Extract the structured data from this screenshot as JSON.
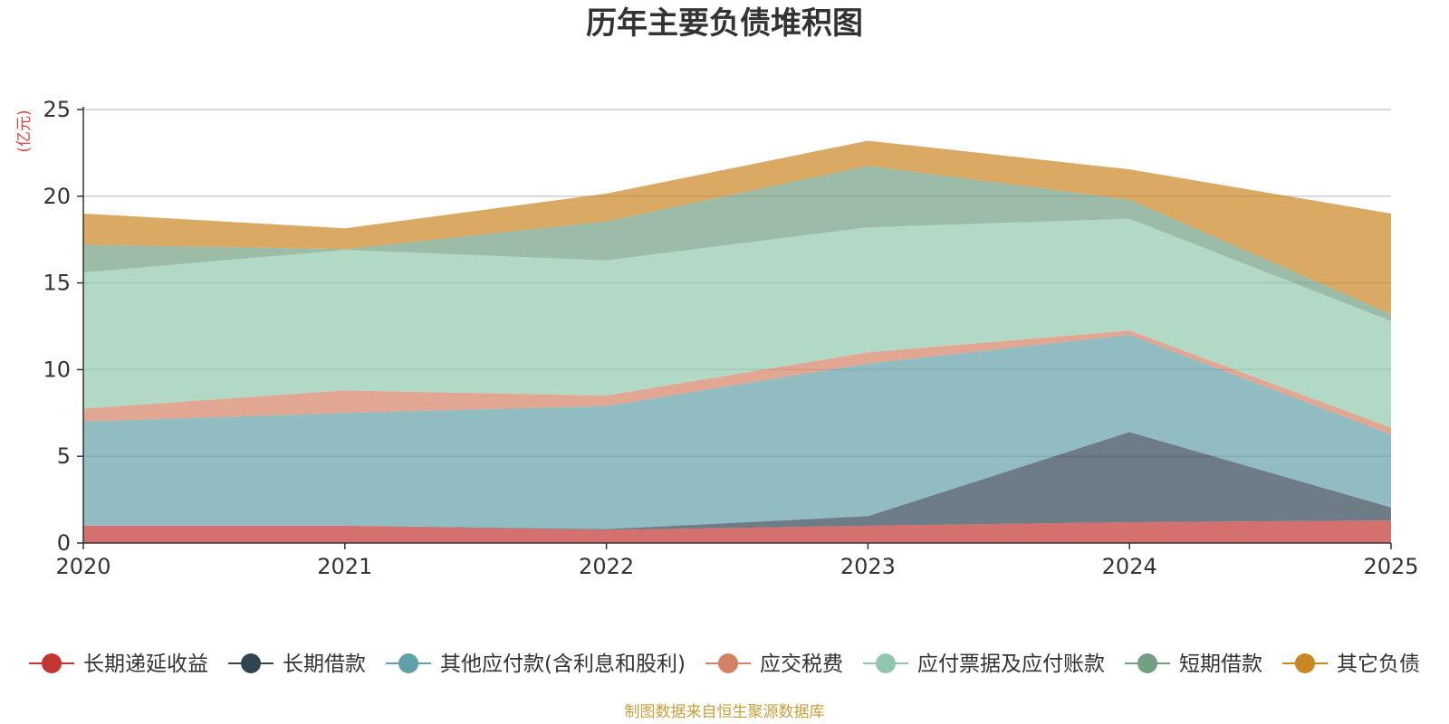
{
  "chart_data": {
    "type": "area",
    "stacked": true,
    "title": "历年主要负债堆积图",
    "ylabel": "(亿元)",
    "x": [
      "2020",
      "2021",
      "2022",
      "2023",
      "2024",
      "2025"
    ],
    "ylim": [
      0,
      25
    ],
    "yticks": [
      0,
      5,
      10,
      15,
      20,
      25
    ],
    "grid": true,
    "legend_position": "bottom",
    "series": [
      {
        "name": "长期递延收益",
        "color": "#c23531",
        "values": [
          1.0,
          1.0,
          0.75,
          1.0,
          1.2,
          1.3
        ]
      },
      {
        "name": "长期借款",
        "color": "#2f4554",
        "values": [
          0.0,
          0.0,
          0.05,
          0.55,
          5.2,
          0.75
        ]
      },
      {
        "name": "其他应付款(含利息和股利)",
        "color": "#61a0a8",
        "values": [
          6.0,
          6.5,
          7.1,
          8.8,
          5.6,
          4.2
        ]
      },
      {
        "name": "应交税费",
        "color": "#d48265",
        "values": [
          0.75,
          1.3,
          0.6,
          0.65,
          0.25,
          0.4
        ]
      },
      {
        "name": "应付票据及应付账款",
        "color": "#91c7ae",
        "values": [
          7.85,
          8.1,
          7.8,
          7.2,
          6.45,
          6.15
        ]
      },
      {
        "name": "短期借款",
        "color": "#749f83",
        "values": [
          1.6,
          0.05,
          2.25,
          3.55,
          1.1,
          0.4
        ]
      },
      {
        "name": "其它负债",
        "color": "#ca8622",
        "values": [
          1.8,
          1.2,
          1.6,
          1.45,
          1.75,
          5.8
        ]
      }
    ]
  },
  "source_note": "制图数据来自恒生聚源数据库",
  "colors": {
    "unit_label": "#e8403b",
    "source_note": "#c8a03c",
    "axis": "#333333",
    "grid": "#cccccc"
  }
}
